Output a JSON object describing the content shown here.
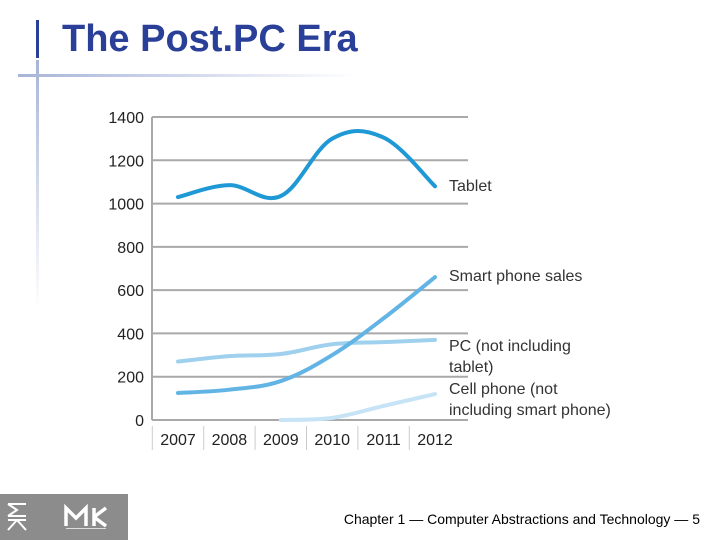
{
  "slide": {
    "title": "The Post.PC Era",
    "footer": "Chapter 1 — Computer Abstractions and Technology — 5"
  },
  "colors": {
    "title": "#2a3f98",
    "grid": "#a9a9a9",
    "tablet": "#1f98d6",
    "smart_phone": "#62b4e4",
    "pc": "#9fd0ee",
    "cell_phone": "#c6e4f6",
    "logo_bg": "#8c8c8c"
  },
  "chart_data": {
    "type": "line",
    "x": [
      "2007",
      "2008",
      "2009",
      "2010",
      "2011",
      "2012"
    ],
    "ylim": [
      0,
      1400
    ],
    "yticks": [
      "0",
      "200",
      "400",
      "600",
      "800",
      "1000",
      "1200",
      "1400"
    ],
    "ytick_values": [
      0,
      200,
      400,
      600,
      800,
      1000,
      1200,
      1400
    ],
    "grid": true,
    "legend": "inline-right",
    "series": [
      {
        "name": "Tablet",
        "label_lines": [
          "Tablet"
        ],
        "color": "#1f98d6",
        "points": [
          [
            2007,
            1030
          ],
          [
            2008,
            1085
          ],
          [
            2009,
            1035
          ],
          [
            2010,
            1300
          ],
          [
            2011,
            1305
          ],
          [
            2012,
            1080
          ]
        ]
      },
      {
        "name": "Smart phone sales",
        "label_lines": [
          "Smart phone sales"
        ],
        "color": "#62b4e4",
        "points": [
          [
            2007,
            125
          ],
          [
            2008,
            140
          ],
          [
            2009,
            180
          ],
          [
            2010,
            300
          ],
          [
            2011,
            470
          ],
          [
            2012,
            660
          ]
        ]
      },
      {
        "name": "PC (not including tablet)",
        "label_lines": [
          "PC (not including",
          "tablet)"
        ],
        "color": "#9fd0ee",
        "points": [
          [
            2007,
            270
          ],
          [
            2008,
            295
          ],
          [
            2009,
            305
          ],
          [
            2010,
            350
          ],
          [
            2011,
            360
          ],
          [
            2012,
            370
          ]
        ]
      },
      {
        "name": "Cell phone (not including smart phone)",
        "label_lines": [
          "Cell phone (not",
          "including smart phone)"
        ],
        "color": "#c6e4f6",
        "points": [
          [
            2009,
            0
          ],
          [
            2010,
            10
          ],
          [
            2011,
            65
          ],
          [
            2012,
            120
          ]
        ]
      }
    ]
  }
}
